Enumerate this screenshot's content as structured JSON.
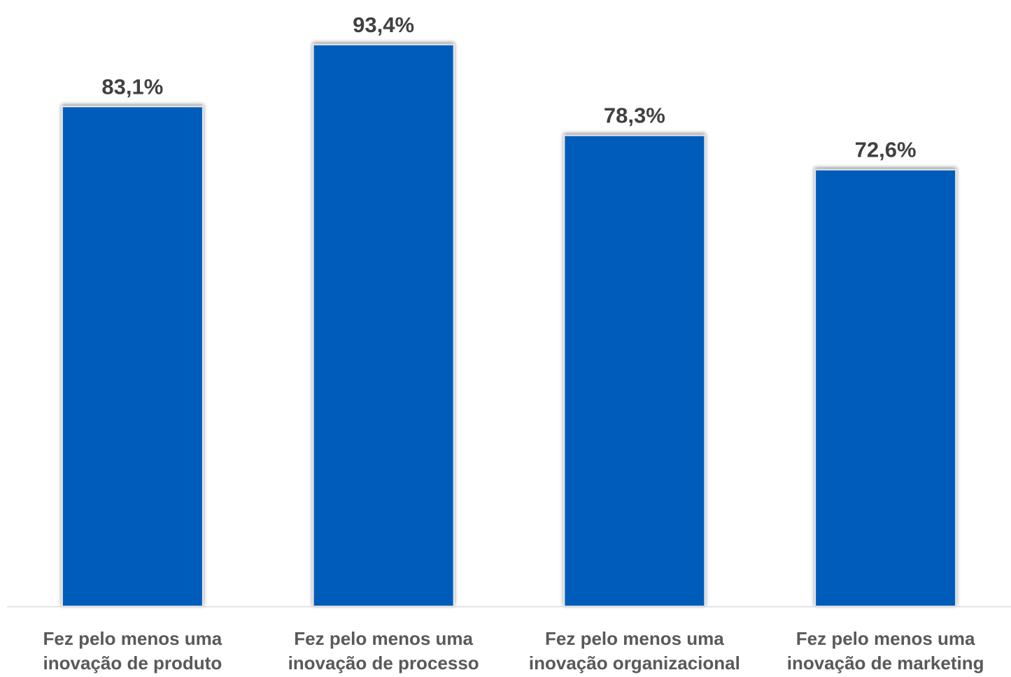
{
  "chart_data": {
    "type": "bar",
    "categories": [
      [
        "Fez pelo menos uma",
        "inovação de produto"
      ],
      [
        "Fez pelo menos uma",
        "inovação de processo"
      ],
      [
        "Fez pelo menos uma",
        "inovação organizacional"
      ],
      [
        "Fez pelo menos uma",
        "inovação de marketing"
      ]
    ],
    "values": [
      83.1,
      93.4,
      78.3,
      72.6
    ],
    "value_labels": [
      "83,1%",
      "93,4%",
      "78,3%",
      "72,6%"
    ],
    "unit": "%",
    "title": "",
    "xlabel": "",
    "ylabel": "",
    "ylim": [
      0,
      100
    ],
    "grid": false,
    "legend": "none",
    "colors": {
      "bar": "#005BBB",
      "bar_border": "#E8E8E8",
      "value_label": "#404040",
      "category_label": "#595959",
      "axis": "#D9D9D9"
    }
  }
}
